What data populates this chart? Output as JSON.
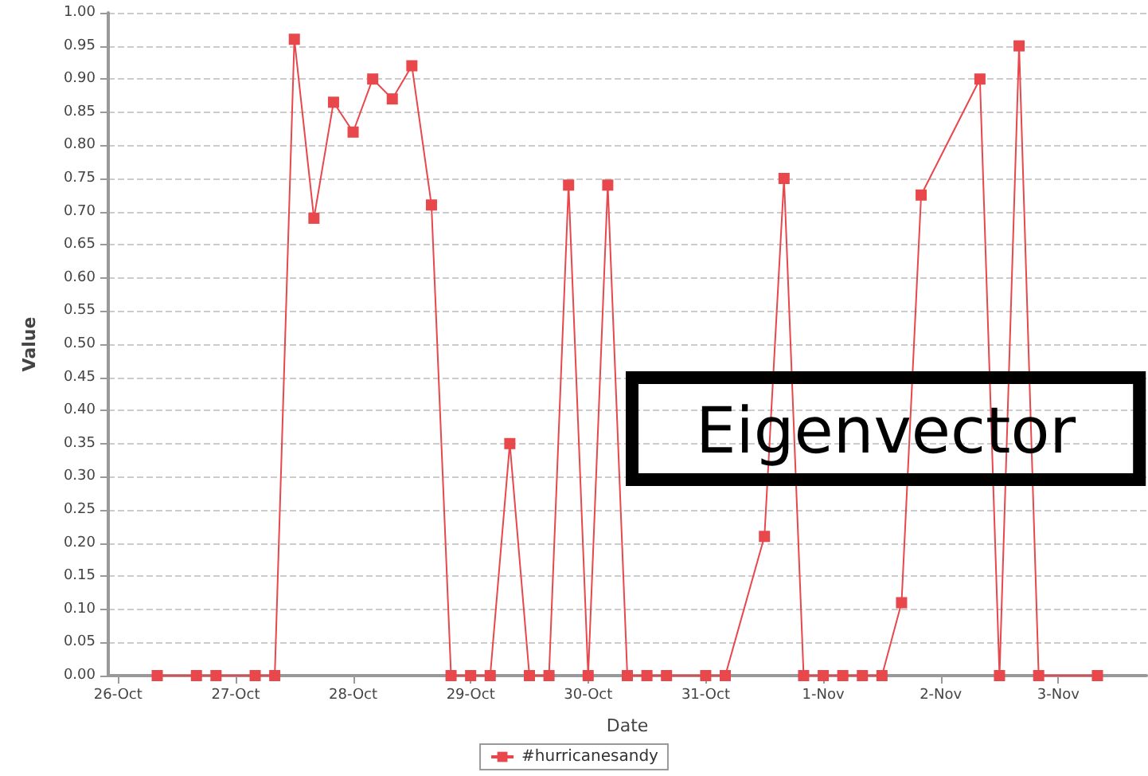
{
  "chart_data": {
    "type": "line",
    "xlabel": "Date",
    "ylabel": "Value",
    "x": [
      "--10-26T08:00",
      "--10-26T16:00",
      "--10-26T20:00",
      "--10-27T04:00",
      "--10-27T08:00",
      "--10-27T12:00",
      "--10-27T16:00",
      "--10-27T20:00",
      "--10-28T00:00",
      "--10-28T04:00",
      "--10-28T08:00",
      "--10-28T12:00",
      "--10-28T16:00",
      "--10-28T20:00",
      "--10-29T00:00",
      "--10-29T04:00",
      "--10-29T08:00",
      "--10-29T12:00",
      "--10-29T16:00",
      "--10-29T20:00",
      "--10-30T00:00",
      "--10-30T04:00",
      "--10-30T08:00",
      "--10-30T12:00",
      "--10-30T16:00",
      "--10-31T00:00",
      "--10-31T04:00",
      "--10-31T12:00",
      "--10-31T16:00",
      "--10-31T20:00",
      "--11-01T00:00",
      "--11-01T04:00",
      "--11-01T08:00",
      "--11-01T12:00",
      "--11-01T16:00",
      "--11-01T20:00",
      "--11-02T08:00",
      "--11-02T12:00",
      "--11-02T16:00",
      "--11-02T20:00",
      "--11-03T08:00"
    ],
    "series": [
      {
        "name": "#hurricanesandy",
        "color": "#e8474c",
        "values": [
          0,
          0,
          0,
          0,
          0,
          0.96,
          0.69,
          0.865,
          0.82,
          0.9,
          0.87,
          0.92,
          0.71,
          0,
          0,
          0,
          0.35,
          0,
          0,
          0.74,
          0,
          0.74,
          0,
          0,
          0,
          0,
          0,
          0.21,
          0.75,
          0,
          0,
          0,
          0,
          0,
          0.11,
          0.725,
          0.9,
          0,
          0.95,
          0,
          0
        ]
      }
    ],
    "xlim": [
      "--10-25T22:00",
      "--11-03T18:00"
    ],
    "xticks": [
      {
        "value": "--10-26",
        "label": "26-Oct"
      },
      {
        "value": "--10-27",
        "label": "27-Oct"
      },
      {
        "value": "--10-28",
        "label": "28-Oct"
      },
      {
        "value": "--10-29",
        "label": "29-Oct"
      },
      {
        "value": "--10-30",
        "label": "30-Oct"
      },
      {
        "value": "--10-31",
        "label": "31-Oct"
      },
      {
        "value": "--11-01",
        "label": "1-Nov"
      },
      {
        "value": "--11-02",
        "label": "2-Nov"
      },
      {
        "value": "--11-03",
        "label": "3-Nov"
      }
    ],
    "ylim": [
      0,
      1
    ],
    "yticks": [
      {
        "value": 0,
        "label": "0.00"
      },
      {
        "value": 0.05,
        "label": "0.05"
      },
      {
        "value": 0.1,
        "label": "0.10"
      },
      {
        "value": 0.15,
        "label": "0.15"
      },
      {
        "value": 0.2,
        "label": "0.20"
      },
      {
        "value": 0.25,
        "label": "0.25"
      },
      {
        "value": 0.3,
        "label": "0.30"
      },
      {
        "value": 0.35,
        "label": "0.35"
      },
      {
        "value": 0.4,
        "label": "0.40"
      },
      {
        "value": 0.45,
        "label": "0.45"
      },
      {
        "value": 0.5,
        "label": "0.50"
      },
      {
        "value": 0.55,
        "label": "0.55"
      },
      {
        "value": 0.6,
        "label": "0.60"
      },
      {
        "value": 0.65,
        "label": "0.65"
      },
      {
        "value": 0.7,
        "label": "0.70"
      },
      {
        "value": 0.75,
        "label": "0.75"
      },
      {
        "value": 0.8,
        "label": "0.80"
      },
      {
        "value": 0.85,
        "label": "0.85"
      },
      {
        "value": 0.9,
        "label": "0.90"
      },
      {
        "value": 0.95,
        "label": "0.95"
      },
      {
        "value": 1,
        "label": "1.00"
      }
    ],
    "grid": "y",
    "legend": "bottom",
    "marker": "square",
    "line_style": "solid",
    "annotations": [
      "Eigenvector"
    ]
  }
}
